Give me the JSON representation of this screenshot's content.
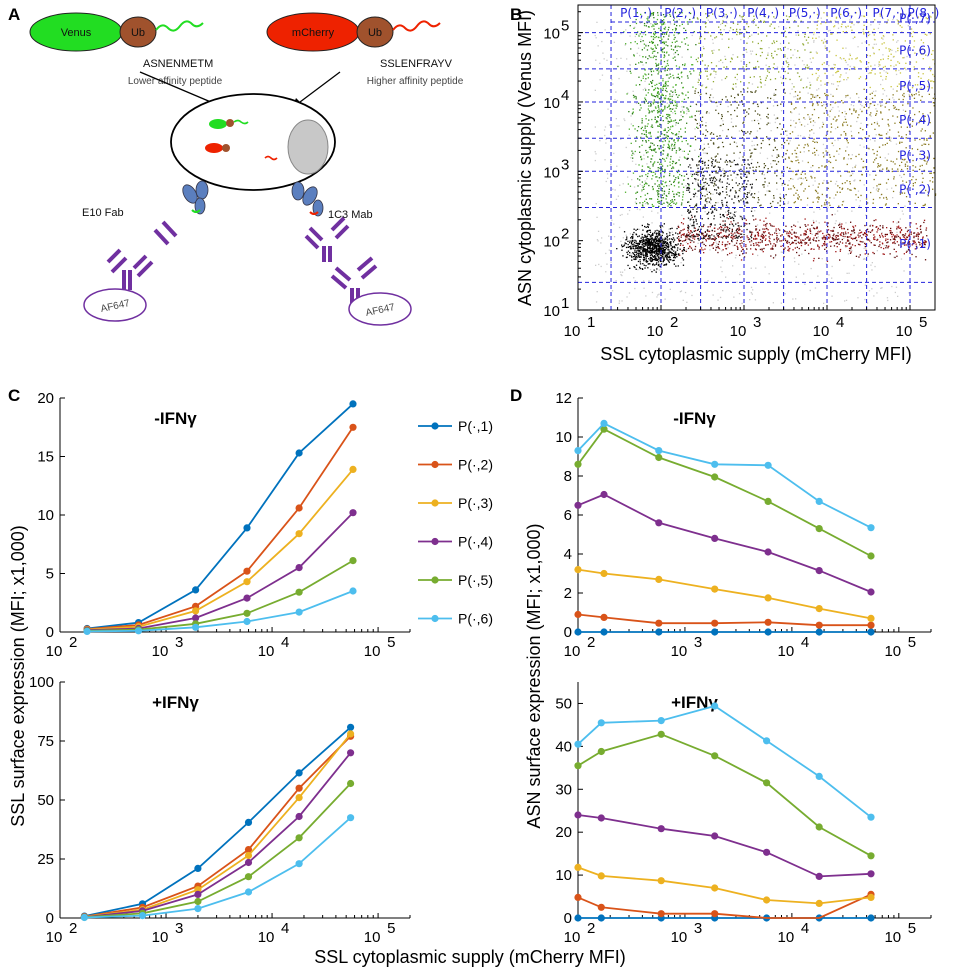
{
  "panels": {
    "a": {
      "label": "A",
      "left_construct": {
        "venus": "Venus",
        "ub": "Ub",
        "peptide": "ASNENMETM",
        "note": "Lower affinity peptide"
      },
      "right_construct": {
        "mcherry": "mCherry",
        "ub": "Ub",
        "peptide": "SSLENFRAYV",
        "note": "Higher affinity peptide"
      },
      "left_antibody": "E10 Fab",
      "right_antibody": "1C3 Mab",
      "fluor_left": "AF647",
      "fluor_right": "AF647"
    },
    "b": {
      "label": "B",
      "xlabel": "SSL cytoplasmic supply (mCherry MFI)",
      "ylabel": "ASN cytoplasmic supply (Venus MFI)",
      "x_ticks": [
        "10",
        "10",
        "10",
        "10",
        "10"
      ],
      "x_exps": [
        "1",
        "2",
        "3",
        "4",
        "5"
      ],
      "y_ticks": [
        "10",
        "10",
        "10",
        "10",
        "10"
      ],
      "y_exps": [
        "1",
        "2",
        "3",
        "4",
        "5"
      ],
      "col_bins": [
        "P(1,·)",
        "P(2,·)",
        "P(3,·)",
        "P(4,·)",
        "P(5,·)",
        "P(6,·)",
        "P(7,·)",
        "P(8,·)"
      ],
      "row_bins": [
        "P(·,7)",
        "P(·,6)",
        "P(·,5)",
        "P(·,4)",
        "P(·,3)",
        "P(·,2)",
        "P(·,1)"
      ]
    },
    "c": {
      "label": "C",
      "ylabel": "SSL surface expression (MFI; x1,000)",
      "xlabel": "SSL cytoplasmic supply (mCherry MFI)"
    },
    "d": {
      "label": "D",
      "ylabel": "ASN surface expression (MFI; x1,000)"
    },
    "legend": [
      "P(·,1)",
      "P(·,2)",
      "P(·,3)",
      "P(·,4)",
      "P(·,5)",
      "P(·,6)"
    ]
  },
  "colors": {
    "series": [
      "#0072bd",
      "#d95319",
      "#edb120",
      "#7e2f8e",
      "#77ac30",
      "#4dbeee"
    ],
    "bin_lines": "#2222dd",
    "venus": "#22dd22",
    "mcherry": "#ee2200",
    "ub": "#a0522d",
    "antibody": "#7030a0"
  },
  "chart_data": [
    {
      "type": "scatter",
      "title": "",
      "xlabel": "SSL cytoplasmic supply (mCherry MFI)",
      "ylabel": "ASN cytoplasmic supply (Venus MFI)",
      "xscale": "log",
      "yscale": "log",
      "xlim": [
        10,
        200000
      ],
      "ylim": [
        10,
        250000
      ],
      "x_bin_edges": [
        25,
        100,
        300,
        1000,
        3000,
        10000,
        30000,
        100000
      ],
      "y_bin_edges": [
        25,
        300,
        1000,
        3000,
        10000,
        30000,
        100000
      ],
      "description_density": "dense flow cytometry cloud"
    },
    {
      "type": "line",
      "title": "-IFNγ",
      "xscale": "log",
      "xlim": [
        100,
        200000
      ],
      "ylim": [
        0,
        20
      ],
      "yticks": [
        0,
        5,
        10,
        15,
        20
      ],
      "x": [
        180,
        550,
        1900,
        5800,
        18000,
        58000
      ],
      "series": [
        {
          "name": "P(·,1)",
          "values": [
            0.3,
            0.8,
            3.6,
            8.9,
            15.3,
            19.5
          ]
        },
        {
          "name": "P(·,2)",
          "values": [
            0.25,
            0.6,
            2.2,
            5.2,
            10.6,
            17.5
          ]
        },
        {
          "name": "P(·,3)",
          "values": [
            0.2,
            0.45,
            1.8,
            4.3,
            8.4,
            13.9
          ]
        },
        {
          "name": "P(·,4)",
          "values": [
            0.15,
            0.3,
            1.2,
            2.9,
            5.5,
            10.2
          ]
        },
        {
          "name": "P(·,5)",
          "values": [
            0.1,
            0.2,
            0.7,
            1.6,
            3.4,
            6.1
          ]
        },
        {
          "name": "P(·,6)",
          "values": [
            0.05,
            0.1,
            0.4,
            0.9,
            1.7,
            3.5
          ]
        }
      ]
    },
    {
      "type": "line",
      "title": "+IFNγ",
      "xscale": "log",
      "xlim": [
        100,
        200000
      ],
      "ylim": [
        0,
        100
      ],
      "yticks": [
        0,
        25,
        50,
        75,
        100
      ],
      "x": [
        170,
        600,
        2000,
        6000,
        18000,
        55000
      ],
      "series": [
        {
          "name": "P(·,1)",
          "values": [
            0.8,
            6,
            21,
            40.5,
            61.5,
            80.8
          ]
        },
        {
          "name": "P(·,2)",
          "values": [
            0.6,
            4.5,
            13.5,
            29,
            55,
            77
          ]
        },
        {
          "name": "P(·,3)",
          "values": [
            0.5,
            3.5,
            12,
            26.5,
            51,
            78
          ]
        },
        {
          "name": "P(·,4)",
          "values": [
            0.4,
            3,
            10,
            23.5,
            43,
            70
          ]
        },
        {
          "name": "P(·,5)",
          "values": [
            0.3,
            2,
            7,
            17.5,
            34,
            57
          ]
        },
        {
          "name": "P(·,6)",
          "values": [
            0.2,
            1,
            4,
            11,
            23,
            42.5
          ]
        }
      ]
    },
    {
      "type": "line",
      "title": "-IFNγ",
      "xscale": "log",
      "xlim": [
        100,
        200000
      ],
      "ylim": [
        0,
        12
      ],
      "yticks": [
        0,
        2,
        4,
        6,
        8,
        10,
        12
      ],
      "x": [
        100,
        175,
        570,
        1900,
        6000,
        18000,
        55000
      ],
      "series": [
        {
          "name": "P(·,1)",
          "values": [
            0,
            0,
            0,
            0,
            0,
            0,
            0
          ]
        },
        {
          "name": "P(·,2)",
          "values": [
            0.9,
            0.75,
            0.45,
            0.45,
            0.5,
            0.35,
            0.35
          ]
        },
        {
          "name": "P(·,3)",
          "values": [
            3.2,
            3.0,
            2.7,
            2.2,
            1.75,
            1.2,
            0.7
          ]
        },
        {
          "name": "P(·,4)",
          "values": [
            6.5,
            7.05,
            5.6,
            4.8,
            4.1,
            3.15,
            2.05
          ]
        },
        {
          "name": "P(·,5)",
          "values": [
            8.6,
            10.4,
            8.95,
            7.95,
            6.7,
            5.3,
            3.9
          ]
        },
        {
          "name": "P(·,6)",
          "values": [
            9.3,
            10.7,
            9.3,
            8.6,
            8.55,
            6.7,
            5.35
          ]
        }
      ]
    },
    {
      "type": "line",
      "title": "+IFNγ",
      "xscale": "log",
      "xlim": [
        100,
        200000
      ],
      "ylim": [
        0,
        55
      ],
      "yticks": [
        0,
        10,
        20,
        30,
        40,
        50
      ],
      "x": [
        100,
        165,
        600,
        1900,
        5800,
        18000,
        55000
      ],
      "series": [
        {
          "name": "P(·,1)",
          "values": [
            0,
            0,
            0,
            0,
            0,
            0,
            0
          ]
        },
        {
          "name": "P(·,2)",
          "values": [
            4.8,
            2.5,
            1.0,
            1.0,
            -1,
            -1,
            5.5
          ]
        },
        {
          "name": "P(·,3)",
          "values": [
            11.8,
            9.8,
            8.7,
            7.0,
            4.2,
            3.4,
            4.8
          ]
        },
        {
          "name": "P(·,4)",
          "values": [
            24,
            23.3,
            20.8,
            19.1,
            15.3,
            9.7,
            10.3
          ]
        },
        {
          "name": "P(·,5)",
          "values": [
            35.5,
            38.8,
            42.8,
            37.8,
            31.5,
            21.2,
            14.5
          ]
        },
        {
          "name": "P(·,6)",
          "values": [
            40.5,
            45.5,
            46,
            49.4,
            41.3,
            33.0,
            23.5
          ]
        }
      ]
    }
  ]
}
